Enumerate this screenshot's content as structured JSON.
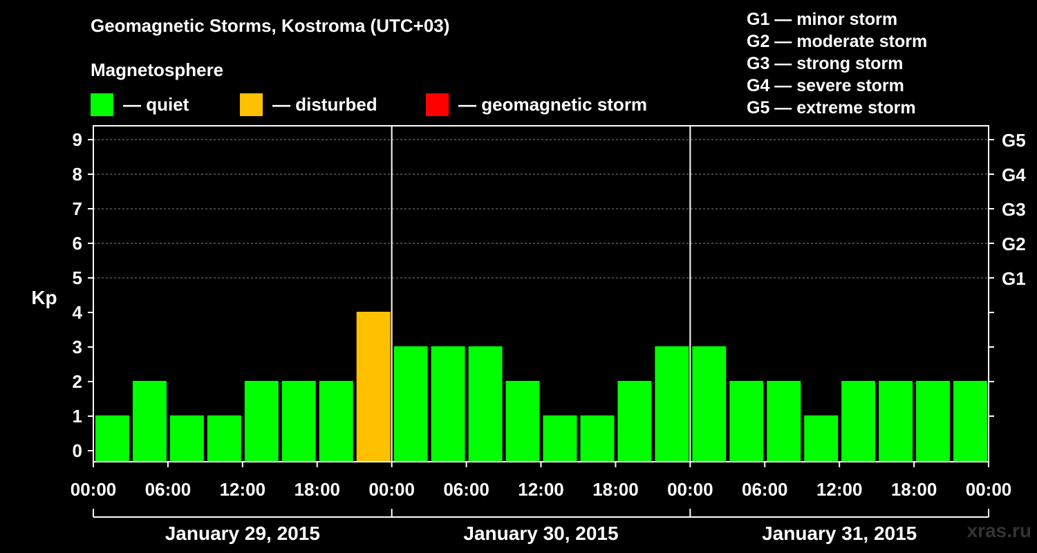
{
  "title": "Geomagnetic Storms, Kostroma (UTC+03)",
  "subtitle": "Magnetosphere",
  "legend": [
    {
      "label": "— quiet",
      "color": "#00ff00"
    },
    {
      "label": "— disturbed",
      "color": "#ffc000"
    },
    {
      "label": "— geomagnetic storm",
      "color": "#ff0000"
    }
  ],
  "storm_scale": [
    "G1 — minor storm",
    "G2 — moderate storm",
    "G3 — strong storm",
    "G4 — severe storm",
    "G5 — extreme storm"
  ],
  "watermark": "xras.ru",
  "chart_data": {
    "type": "bar",
    "title": "Geomagnetic Storms, Kostroma (UTC+03)",
    "ylabel": "Kp",
    "ylim": [
      0,
      9
    ],
    "yticks": [
      0,
      1,
      2,
      3,
      4,
      5,
      6,
      7,
      8,
      9
    ],
    "right_ticks": [
      {
        "value": 5,
        "label": "G1"
      },
      {
        "value": 6,
        "label": "G2"
      },
      {
        "value": 7,
        "label": "G3"
      },
      {
        "value": 8,
        "label": "G4"
      },
      {
        "value": 9,
        "label": "G5"
      }
    ],
    "grid": "dashed horizontal lines at Kp 5–9",
    "xtick_labels": [
      "00:00",
      "06:00",
      "12:00",
      "18:00",
      "00:00",
      "06:00",
      "12:00",
      "18:00",
      "00:00",
      "06:00",
      "12:00",
      "18:00",
      "00:00"
    ],
    "days": [
      "January 29, 2015",
      "January 30, 2015",
      "January 31, 2015"
    ],
    "interval_hours": 3,
    "values": [
      1,
      2,
      1,
      1,
      2,
      2,
      2,
      4,
      3,
      3,
      3,
      2,
      1,
      1,
      2,
      3,
      3,
      2,
      2,
      1,
      2,
      2,
      2,
      2
    ],
    "colors": {
      "quiet": "#00ff00",
      "disturbed": "#ffc000",
      "storm": "#ff0000"
    }
  }
}
